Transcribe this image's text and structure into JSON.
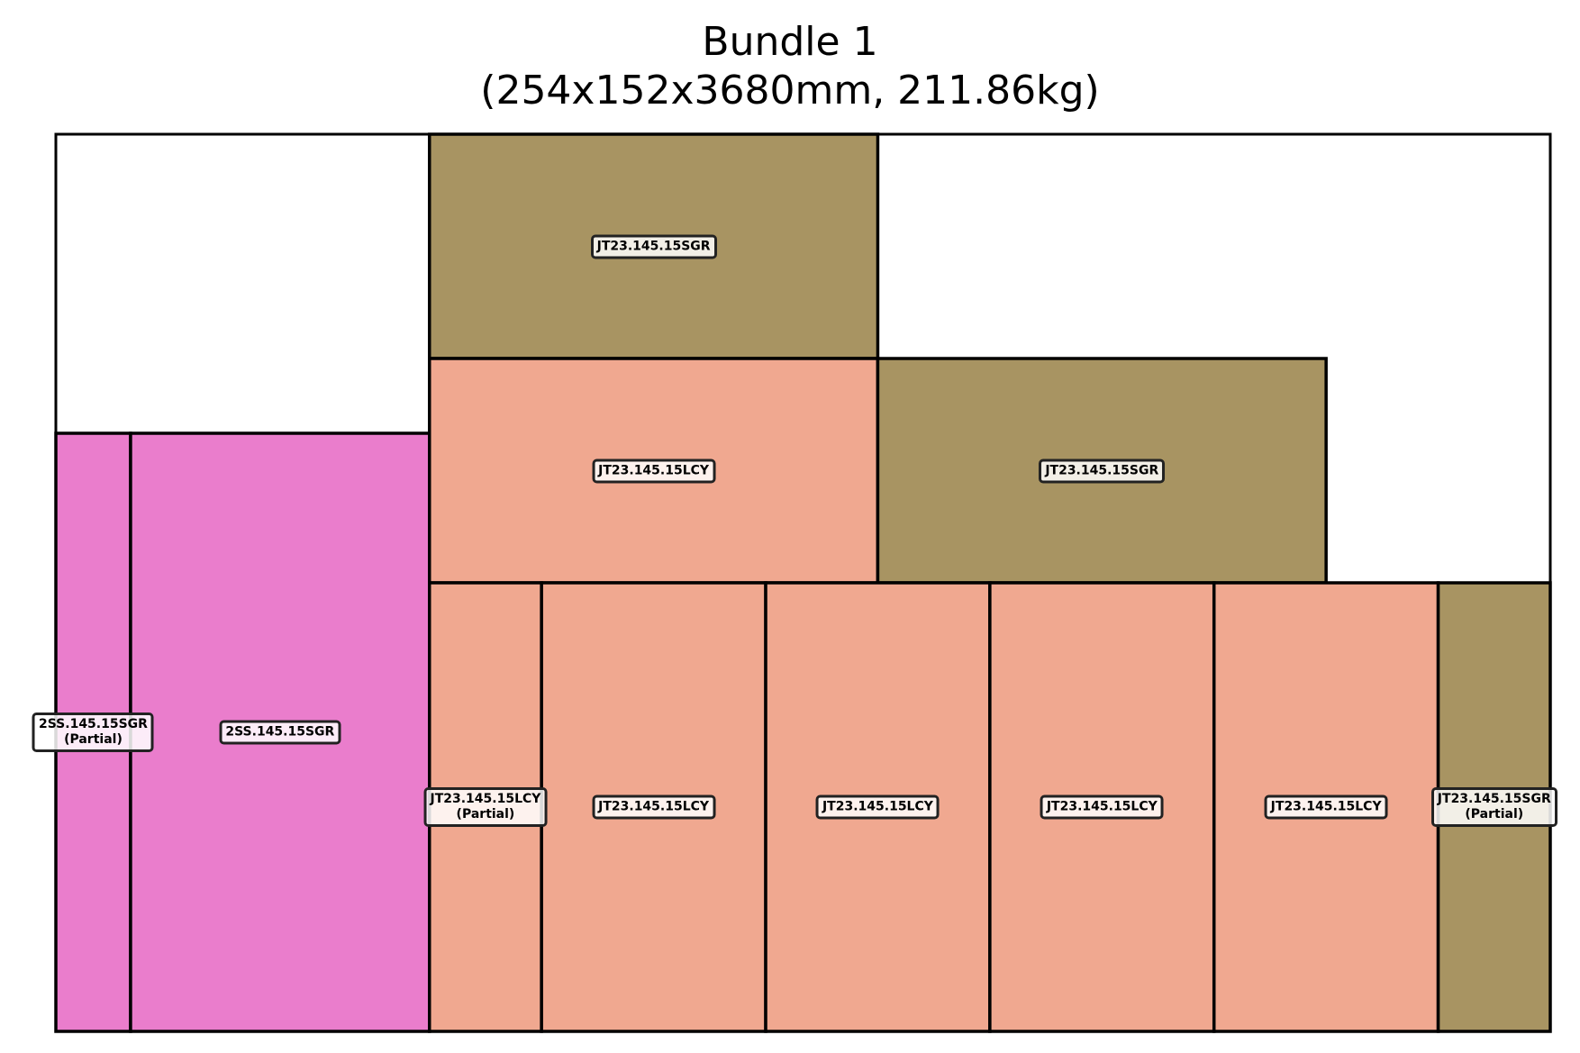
{
  "title": "Bundle 1",
  "subtitle": "(254x152x3680mm, 211.86kg)",
  "colors": {
    "SGR": "#a89462",
    "LCY": "#f0a890",
    "2SS": "#ea7dcc",
    "outline": "#000000"
  },
  "chart_data": {
    "type": "packing-diagram",
    "width_units": 20,
    "height_units": 12,
    "pieces": [
      {
        "code": "JT23.145.15SGR",
        "partial": "",
        "color": "#a89462",
        "x": 5,
        "y": 9,
        "w": 6,
        "h": 3
      },
      {
        "code": "JT23.145.15LCY",
        "partial": "",
        "color": "#f0a890",
        "x": 5,
        "y": 6,
        "w": 6,
        "h": 3
      },
      {
        "code": "JT23.145.15SGR",
        "partial": "",
        "color": "#a89462",
        "x": 11,
        "y": 6,
        "w": 6,
        "h": 3
      },
      {
        "code": "2SS.145.15SGR",
        "partial": "(Partial)",
        "color": "#ea7dcc",
        "x": 0,
        "y": 0,
        "w": 1,
        "h": 8
      },
      {
        "code": "2SS.145.15SGR",
        "partial": "",
        "color": "#ea7dcc",
        "x": 1,
        "y": 0,
        "w": 4,
        "h": 8
      },
      {
        "code": "JT23.145.15LCY",
        "partial": "(Partial)",
        "color": "#f0a890",
        "x": 5,
        "y": 0,
        "w": 1.5,
        "h": 6
      },
      {
        "code": "JT23.145.15LCY",
        "partial": "",
        "color": "#f0a890",
        "x": 6.5,
        "y": 0,
        "w": 3,
        "h": 6
      },
      {
        "code": "JT23.145.15LCY",
        "partial": "",
        "color": "#f0a890",
        "x": 9.5,
        "y": 0,
        "w": 3,
        "h": 6
      },
      {
        "code": "JT23.145.15LCY",
        "partial": "",
        "color": "#f0a890",
        "x": 12.5,
        "y": 0,
        "w": 3,
        "h": 6
      },
      {
        "code": "JT23.145.15LCY",
        "partial": "",
        "color": "#f0a890",
        "x": 15.5,
        "y": 0,
        "w": 3,
        "h": 6
      },
      {
        "code": "JT23.145.15SGR",
        "partial": "(Partial)",
        "color": "#a89462",
        "x": 18.5,
        "y": 0,
        "w": 1.5,
        "h": 6
      }
    ]
  }
}
